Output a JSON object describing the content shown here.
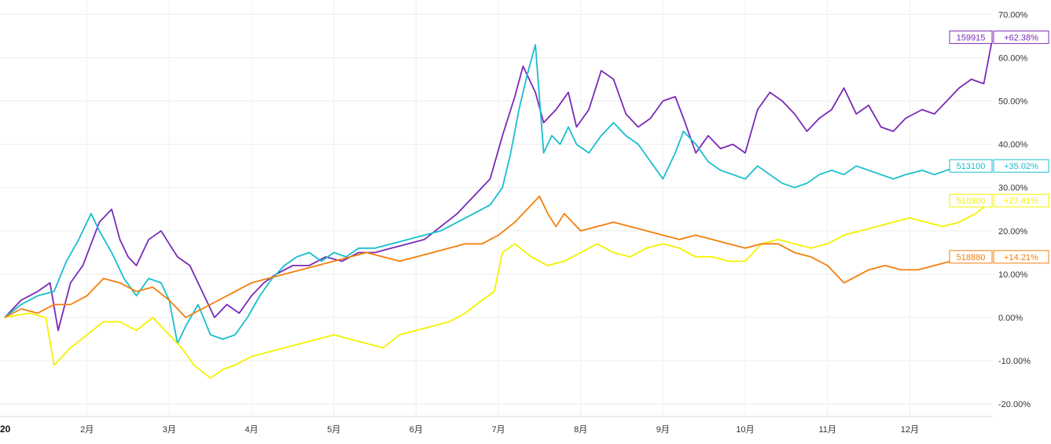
{
  "chart_data": {
    "type": "line",
    "y_unit": "%",
    "ylim": [
      -22,
      72
    ],
    "y_ticks": [
      "70.00%",
      "60.00%",
      "50.00%",
      "40.00%",
      "30.00%",
      "20.00%",
      "10.00%",
      "0.00%",
      "-10.00%",
      "-20.00%"
    ],
    "y_tick_values": [
      70,
      60,
      50,
      40,
      30,
      20,
      10,
      0,
      -10,
      -20
    ],
    "x_ticks": [
      {
        "label": "20",
        "month": 1,
        "bold": true
      },
      {
        "label": "2月",
        "month": 2
      },
      {
        "label": "3月",
        "month": 3
      },
      {
        "label": "4月",
        "month": 4
      },
      {
        "label": "5月",
        "month": 5
      },
      {
        "label": "6月",
        "month": 6
      },
      {
        "label": "7月",
        "month": 7
      },
      {
        "label": "8月",
        "month": 8
      },
      {
        "label": "9月",
        "month": 9
      },
      {
        "label": "10月",
        "month": 10
      },
      {
        "label": "11月",
        "month": 11
      },
      {
        "label": "12月",
        "month": 12
      }
    ],
    "x_range_months": [
      1.0,
      13.0
    ],
    "grid": true,
    "series": [
      {
        "name": "159915",
        "label": "+62.38%",
        "color": "#7a2ab8",
        "points": [
          [
            1.0,
            0
          ],
          [
            1.2,
            4
          ],
          [
            1.4,
            6
          ],
          [
            1.55,
            8
          ],
          [
            1.65,
            -3
          ],
          [
            1.8,
            8
          ],
          [
            1.95,
            12
          ],
          [
            2.15,
            22
          ],
          [
            2.3,
            25
          ],
          [
            2.4,
            18
          ],
          [
            2.5,
            14
          ],
          [
            2.6,
            12
          ],
          [
            2.75,
            18
          ],
          [
            2.9,
            20
          ],
          [
            3.0,
            17
          ],
          [
            3.1,
            14
          ],
          [
            3.25,
            12
          ],
          [
            3.4,
            6
          ],
          [
            3.55,
            0
          ],
          [
            3.7,
            3
          ],
          [
            3.85,
            1
          ],
          [
            4.0,
            5
          ],
          [
            4.15,
            8
          ],
          [
            4.3,
            10
          ],
          [
            4.5,
            12
          ],
          [
            4.7,
            12
          ],
          [
            4.9,
            14
          ],
          [
            5.1,
            13
          ],
          [
            5.3,
            15
          ],
          [
            5.5,
            15
          ],
          [
            5.7,
            16
          ],
          [
            5.9,
            17
          ],
          [
            6.1,
            18
          ],
          [
            6.3,
            21
          ],
          [
            6.5,
            24
          ],
          [
            6.7,
            28
          ],
          [
            6.9,
            32
          ],
          [
            7.05,
            42
          ],
          [
            7.2,
            51
          ],
          [
            7.3,
            58
          ],
          [
            7.45,
            52
          ],
          [
            7.55,
            45
          ],
          [
            7.7,
            48
          ],
          [
            7.85,
            52
          ],
          [
            7.95,
            44
          ],
          [
            8.1,
            48
          ],
          [
            8.25,
            57
          ],
          [
            8.4,
            55
          ],
          [
            8.55,
            47
          ],
          [
            8.7,
            44
          ],
          [
            8.85,
            46
          ],
          [
            9.0,
            50
          ],
          [
            9.15,
            51
          ],
          [
            9.25,
            46
          ],
          [
            9.4,
            38
          ],
          [
            9.55,
            42
          ],
          [
            9.7,
            39
          ],
          [
            9.85,
            40
          ],
          [
            10.0,
            38
          ],
          [
            10.15,
            48
          ],
          [
            10.3,
            52
          ],
          [
            10.45,
            50
          ],
          [
            10.6,
            47
          ],
          [
            10.75,
            43
          ],
          [
            10.9,
            46
          ],
          [
            11.05,
            48
          ],
          [
            11.2,
            53
          ],
          [
            11.35,
            47
          ],
          [
            11.5,
            49
          ],
          [
            11.65,
            44
          ],
          [
            11.8,
            43
          ],
          [
            11.95,
            46
          ],
          [
            12.15,
            48
          ],
          [
            12.3,
            47
          ],
          [
            12.45,
            50
          ],
          [
            12.6,
            53
          ],
          [
            12.75,
            55
          ],
          [
            12.9,
            54
          ],
          [
            13.0,
            64
          ]
        ]
      },
      {
        "name": "513100",
        "label": "+35.02%",
        "color": "#17becf",
        "points": [
          [
            1.0,
            0
          ],
          [
            1.2,
            3
          ],
          [
            1.4,
            5
          ],
          [
            1.6,
            6
          ],
          [
            1.75,
            13
          ],
          [
            1.9,
            18
          ],
          [
            2.05,
            24
          ],
          [
            2.15,
            20
          ],
          [
            2.3,
            15
          ],
          [
            2.45,
            9
          ],
          [
            2.6,
            5
          ],
          [
            2.75,
            9
          ],
          [
            2.9,
            8
          ],
          [
            3.0,
            4
          ],
          [
            3.1,
            -6
          ],
          [
            3.2,
            -2
          ],
          [
            3.35,
            3
          ],
          [
            3.5,
            -4
          ],
          [
            3.65,
            -5
          ],
          [
            3.8,
            -4
          ],
          [
            3.95,
            0
          ],
          [
            4.1,
            5
          ],
          [
            4.25,
            9
          ],
          [
            4.4,
            12
          ],
          [
            4.55,
            14
          ],
          [
            4.7,
            15
          ],
          [
            4.85,
            13
          ],
          [
            5.0,
            15
          ],
          [
            5.15,
            14
          ],
          [
            5.3,
            16
          ],
          [
            5.5,
            16
          ],
          [
            5.7,
            17
          ],
          [
            5.9,
            18
          ],
          [
            6.1,
            19
          ],
          [
            6.3,
            20
          ],
          [
            6.5,
            22
          ],
          [
            6.7,
            24
          ],
          [
            6.9,
            26
          ],
          [
            7.05,
            30
          ],
          [
            7.15,
            38
          ],
          [
            7.25,
            48
          ],
          [
            7.35,
            56
          ],
          [
            7.45,
            63
          ],
          [
            7.55,
            38
          ],
          [
            7.65,
            42
          ],
          [
            7.75,
            40
          ],
          [
            7.85,
            44
          ],
          [
            7.95,
            40
          ],
          [
            8.1,
            38
          ],
          [
            8.25,
            42
          ],
          [
            8.4,
            45
          ],
          [
            8.55,
            42
          ],
          [
            8.7,
            40
          ],
          [
            8.85,
            36
          ],
          [
            9.0,
            32
          ],
          [
            9.15,
            38
          ],
          [
            9.25,
            43
          ],
          [
            9.4,
            40
          ],
          [
            9.55,
            36
          ],
          [
            9.7,
            34
          ],
          [
            9.85,
            33
          ],
          [
            10.0,
            32
          ],
          [
            10.15,
            35
          ],
          [
            10.3,
            33
          ],
          [
            10.45,
            31
          ],
          [
            10.6,
            30
          ],
          [
            10.75,
            31
          ],
          [
            10.9,
            33
          ],
          [
            11.05,
            34
          ],
          [
            11.2,
            33
          ],
          [
            11.35,
            35
          ],
          [
            11.5,
            34
          ],
          [
            11.65,
            33
          ],
          [
            11.8,
            32
          ],
          [
            11.95,
            33
          ],
          [
            12.15,
            34
          ],
          [
            12.3,
            33
          ],
          [
            12.45,
            34
          ],
          [
            12.6,
            35
          ],
          [
            12.75,
            34
          ],
          [
            12.9,
            35
          ],
          [
            13.0,
            35
          ]
        ]
      },
      {
        "name": "510300",
        "label": "+27.41%",
        "color": "#f2f200",
        "points": [
          [
            1.0,
            0
          ],
          [
            1.3,
            1
          ],
          [
            1.5,
            0
          ],
          [
            1.6,
            -11
          ],
          [
            1.8,
            -7
          ],
          [
            2.0,
            -4
          ],
          [
            2.2,
            -1
          ],
          [
            2.4,
            -1
          ],
          [
            2.6,
            -3
          ],
          [
            2.8,
            0
          ],
          [
            3.0,
            -4
          ],
          [
            3.15,
            -7
          ],
          [
            3.3,
            -11
          ],
          [
            3.5,
            -14
          ],
          [
            3.65,
            -12
          ],
          [
            3.8,
            -11
          ],
          [
            4.0,
            -9
          ],
          [
            4.2,
            -8
          ],
          [
            4.4,
            -7
          ],
          [
            4.6,
            -6
          ],
          [
            4.8,
            -5
          ],
          [
            5.0,
            -4
          ],
          [
            5.2,
            -5
          ],
          [
            5.4,
            -6
          ],
          [
            5.6,
            -7
          ],
          [
            5.8,
            -4
          ],
          [
            6.0,
            -3
          ],
          [
            6.2,
            -2
          ],
          [
            6.4,
            -1
          ],
          [
            6.6,
            1
          ],
          [
            6.8,
            4
          ],
          [
            6.95,
            6
          ],
          [
            7.05,
            15
          ],
          [
            7.2,
            17
          ],
          [
            7.4,
            14
          ],
          [
            7.6,
            12
          ],
          [
            7.8,
            13
          ],
          [
            8.0,
            15
          ],
          [
            8.2,
            17
          ],
          [
            8.4,
            15
          ],
          [
            8.6,
            14
          ],
          [
            8.8,
            16
          ],
          [
            9.0,
            17
          ],
          [
            9.2,
            16
          ],
          [
            9.4,
            14
          ],
          [
            9.6,
            14
          ],
          [
            9.8,
            13
          ],
          [
            10.0,
            13
          ],
          [
            10.2,
            17
          ],
          [
            10.4,
            18
          ],
          [
            10.6,
            17
          ],
          [
            10.8,
            16
          ],
          [
            11.0,
            17
          ],
          [
            11.2,
            19
          ],
          [
            11.4,
            20
          ],
          [
            11.6,
            21
          ],
          [
            11.8,
            22
          ],
          [
            12.0,
            23
          ],
          [
            12.2,
            22
          ],
          [
            12.4,
            21
          ],
          [
            12.6,
            22
          ],
          [
            12.8,
            24
          ],
          [
            13.0,
            27
          ]
        ]
      },
      {
        "name": "518880",
        "label": "+14.21%",
        "color": "#f27f0c",
        "points": [
          [
            1.0,
            0
          ],
          [
            1.2,
            2
          ],
          [
            1.4,
            1
          ],
          [
            1.6,
            3
          ],
          [
            1.8,
            3
          ],
          [
            2.0,
            5
          ],
          [
            2.2,
            9
          ],
          [
            2.4,
            8
          ],
          [
            2.6,
            6
          ],
          [
            2.8,
            7
          ],
          [
            3.0,
            4
          ],
          [
            3.2,
            0
          ],
          [
            3.4,
            2
          ],
          [
            3.6,
            4
          ],
          [
            3.8,
            6
          ],
          [
            4.0,
            8
          ],
          [
            4.2,
            9
          ],
          [
            4.4,
            10
          ],
          [
            4.6,
            11
          ],
          [
            4.8,
            12
          ],
          [
            5.0,
            13
          ],
          [
            5.2,
            14
          ],
          [
            5.4,
            15
          ],
          [
            5.6,
            14
          ],
          [
            5.8,
            13
          ],
          [
            6.0,
            14
          ],
          [
            6.2,
            15
          ],
          [
            6.4,
            16
          ],
          [
            6.6,
            17
          ],
          [
            6.8,
            17
          ],
          [
            7.0,
            19
          ],
          [
            7.2,
            22
          ],
          [
            7.4,
            26
          ],
          [
            7.5,
            28
          ],
          [
            7.6,
            24
          ],
          [
            7.7,
            21
          ],
          [
            7.8,
            24
          ],
          [
            7.9,
            22
          ],
          [
            8.0,
            20
          ],
          [
            8.2,
            21
          ],
          [
            8.4,
            22
          ],
          [
            8.6,
            21
          ],
          [
            8.8,
            20
          ],
          [
            9.0,
            19
          ],
          [
            9.2,
            18
          ],
          [
            9.4,
            19
          ],
          [
            9.6,
            18
          ],
          [
            9.8,
            17
          ],
          [
            10.0,
            16
          ],
          [
            10.2,
            17
          ],
          [
            10.4,
            17
          ],
          [
            10.6,
            15
          ],
          [
            10.8,
            14
          ],
          [
            11.0,
            12
          ],
          [
            11.1,
            10
          ],
          [
            11.2,
            8
          ],
          [
            11.3,
            9
          ],
          [
            11.5,
            11
          ],
          [
            11.7,
            12
          ],
          [
            11.9,
            11
          ],
          [
            12.1,
            11
          ],
          [
            12.3,
            12
          ],
          [
            12.5,
            13
          ],
          [
            12.7,
            13
          ],
          [
            12.9,
            14
          ],
          [
            13.0,
            14
          ]
        ]
      }
    ]
  }
}
